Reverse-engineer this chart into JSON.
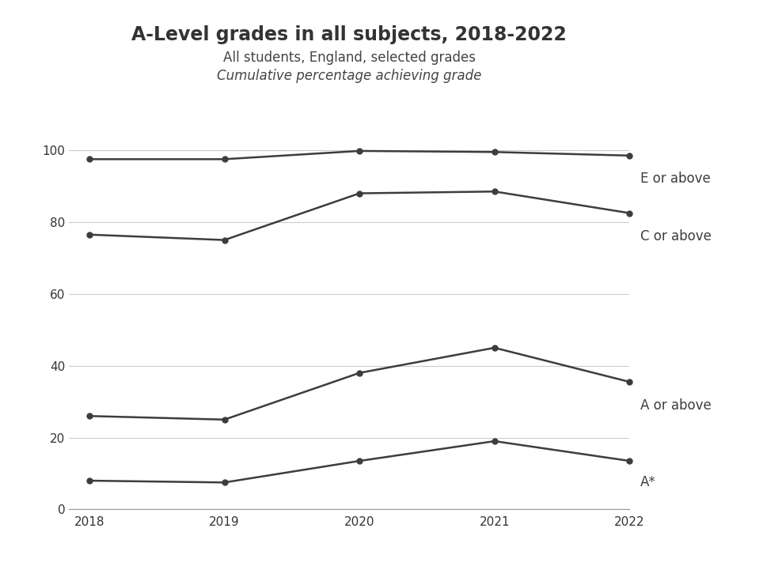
{
  "title": "A-Level grades in all subjects, 2018-2022",
  "subtitle1": "All students, England, selected grades",
  "subtitle2": "Cumulative percentage achieving grade",
  "years": [
    2018,
    2019,
    2020,
    2021,
    2022
  ],
  "series": {
    "E or above": [
      97.5,
      97.5,
      99.8,
      99.5,
      98.5
    ],
    "C or above": [
      76.5,
      75.0,
      88.0,
      88.5,
      82.5
    ],
    "A or above": [
      26.0,
      25.0,
      38.0,
      45.0,
      35.5
    ],
    "A*": [
      8.0,
      7.5,
      13.5,
      19.0,
      13.5
    ]
  },
  "label_y_offsets": {
    "E or above": -4.5,
    "C or above": -4.5,
    "A or above": -4.5,
    "A*": -4.0
  },
  "line_color": "#3d3d3d",
  "marker": "o",
  "marker_size": 5,
  "linewidth": 1.8,
  "ylim": [
    0,
    104
  ],
  "yticks": [
    0,
    20,
    40,
    60,
    80,
    100
  ],
  "background_color": "#ffffff",
  "grid_color": "#cccccc",
  "title_fontsize": 17,
  "subtitle_fontsize": 12,
  "label_fontsize": 12,
  "tick_fontsize": 11
}
